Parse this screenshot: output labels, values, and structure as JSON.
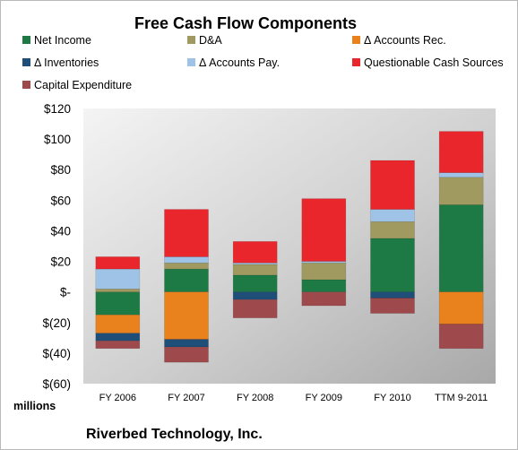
{
  "chart_data": {
    "type": "bar",
    "stacked": true,
    "title": "Free Cash Flow Components",
    "units_label": "millions",
    "company": "Riverbed Technology, Inc.",
    "categories": [
      "FY 2006",
      "FY 2007",
      "FY 2008",
      "FY 2009",
      "FY 2010",
      "TTM 9-2011"
    ],
    "ylim": [
      -60,
      120
    ],
    "yticks": [
      120,
      100,
      80,
      60,
      40,
      20,
      0,
      -20,
      -40,
      -60
    ],
    "ytick_labels": [
      "$120",
      "$100",
      "$80",
      "$60",
      "$40",
      "$20",
      "$-",
      "$(20)",
      "$(40)",
      "$(60)"
    ],
    "grid": false,
    "legend_position": "top",
    "series": [
      {
        "name": "Net Income",
        "color": "#1e7a45",
        "values": [
          -15,
          15,
          11,
          8,
          35,
          57
        ]
      },
      {
        "name": "D&A",
        "color": "#a09a60",
        "values": [
          2,
          4,
          7,
          11,
          11,
          18
        ]
      },
      {
        "name": "Δ Accounts Rec.",
        "color": "#e9821c",
        "values": [
          -12,
          -31,
          0,
          0,
          0,
          -21
        ]
      },
      {
        "name": "Δ Inventories",
        "color": "#1f4e79",
        "values": [
          -5,
          -5,
          -5,
          0,
          -4,
          0
        ]
      },
      {
        "name": "Δ Accounts Pay.",
        "color": "#9fc3e6",
        "values": [
          13,
          4,
          1,
          1,
          8,
          3
        ]
      },
      {
        "name": "Questionable Cash Sources",
        "color": "#e8262b",
        "values": [
          8,
          31,
          14,
          41,
          32,
          27
        ]
      },
      {
        "name": "Capital Expenditure",
        "color": "#9e4a4d",
        "values": [
          -5,
          -10,
          -12,
          -9,
          -10,
          -16
        ]
      }
    ]
  }
}
